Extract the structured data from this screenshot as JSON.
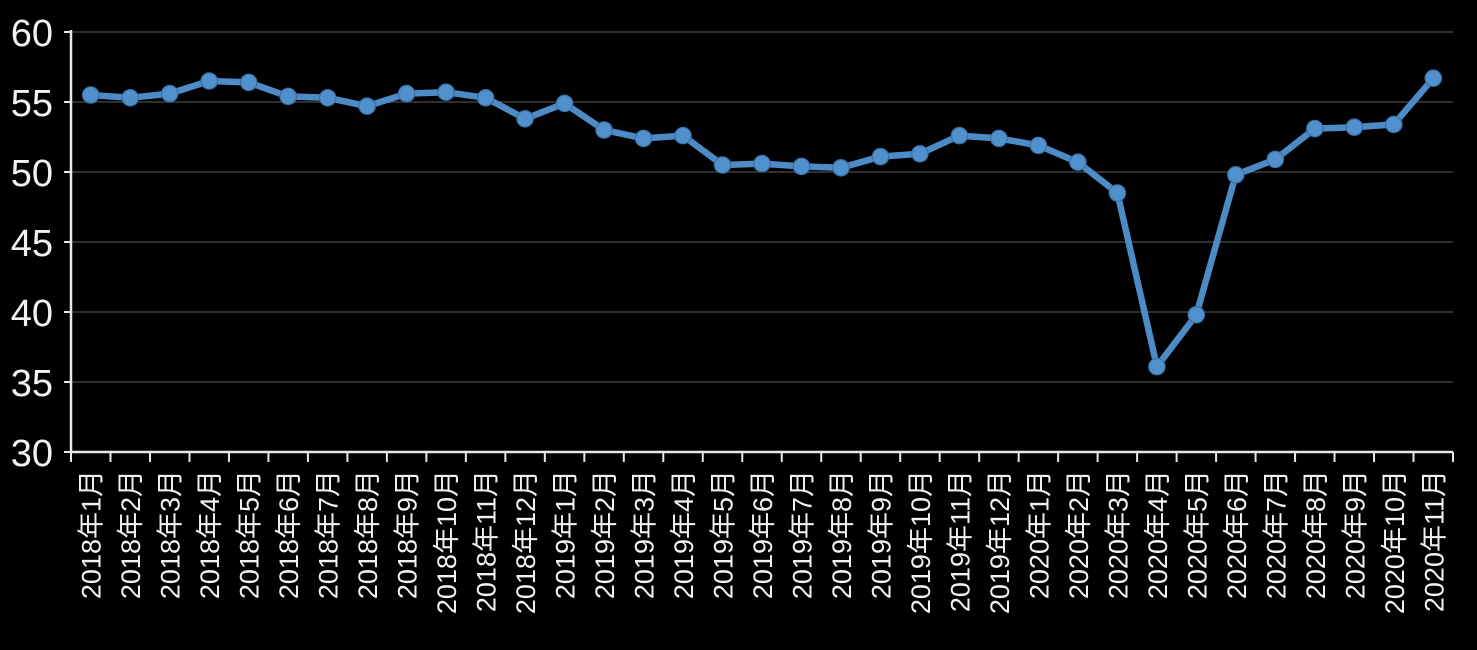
{
  "chart_data": {
    "type": "line",
    "title": "",
    "categories": [
      "2018年1月",
      "2018年2月",
      "2018年3月",
      "2018年4月",
      "2018年5月",
      "2018年6月",
      "2018年7月",
      "2018年8月",
      "2018年9月",
      "2018年10月",
      "2018年11月",
      "2018年12月",
      "2019年1月",
      "2019年2月",
      "2019年3月",
      "2019年4月",
      "2019年5月",
      "2019年6月",
      "2019年7月",
      "2019年8月",
      "2019年9月",
      "2019年10月",
      "2019年11月",
      "2019年12月",
      "2020年1月",
      "2020年2月",
      "2020年3月",
      "2020年4月",
      "2020年5月",
      "2020年6月",
      "2020年7月",
      "2020年8月",
      "2020年9月",
      "2020年10月",
      "2020年11月"
    ],
    "series": [
      {
        "values": [
          55.5,
          55.3,
          55.6,
          56.5,
          56.4,
          55.4,
          55.3,
          54.7,
          55.6,
          55.7,
          55.3,
          53.8,
          54.9,
          53.0,
          52.4,
          52.6,
          50.5,
          50.6,
          50.4,
          50.3,
          51.1,
          51.3,
          52.6,
          52.4,
          51.9,
          50.7,
          48.5,
          36.1,
          39.8,
          49.8,
          50.9,
          53.1,
          53.2,
          53.4,
          56.7
        ]
      }
    ],
    "xlabel": "",
    "ylabel": "",
    "ylim": [
      30,
      60
    ],
    "y_ticks": [
      30,
      35,
      40,
      45,
      50,
      55,
      60
    ],
    "grid": "horizontal",
    "legend": "none",
    "marker": "circle"
  },
  "colors": {
    "background": "#000000",
    "line": "#4d8bc7",
    "marker_fill": "#4f90cd",
    "marker_edge": "#3a6fa3",
    "gridline": "#2e2e2e",
    "axis": "#e7e7e7",
    "tick_label": "#f2f2f2"
  }
}
